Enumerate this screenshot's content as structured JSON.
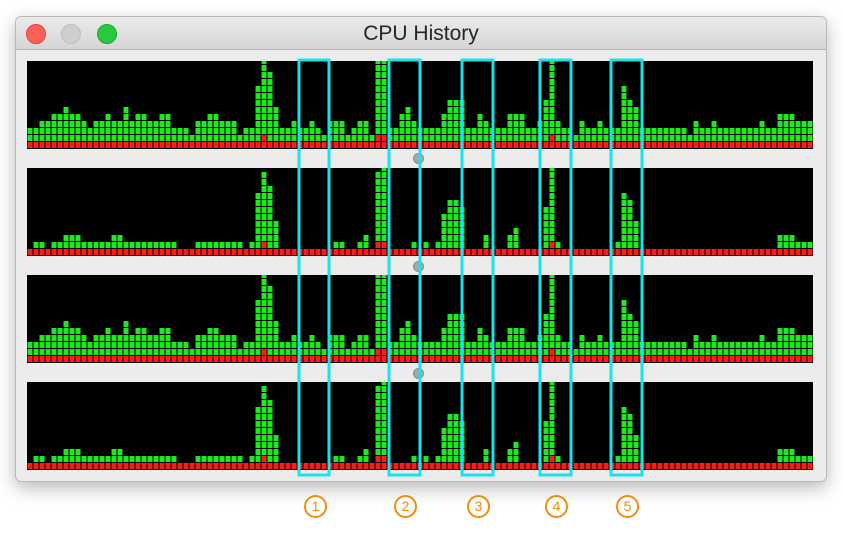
{
  "window": {
    "title": "CPU History",
    "traffic_lights": {
      "close": "#fe5f57",
      "minimize": "#cfcfcf",
      "zoom": "#28c840"
    }
  },
  "colors": {
    "user": "#1ee81e",
    "system": "#ff1a1a",
    "background": "#000000",
    "highlight": "#19e3ea",
    "marker": "#f28d0b"
  },
  "cores": [
    {
      "name": "core-1",
      "user": [
        2,
        2,
        3,
        3,
        4,
        4,
        5,
        4,
        4,
        3,
        2,
        3,
        3,
        4,
        3,
        3,
        5,
        3,
        4,
        4,
        3,
        3,
        4,
        4,
        2,
        2,
        2,
        1,
        3,
        3,
        4,
        4,
        3,
        3,
        3,
        1,
        2,
        2,
        8,
        11,
        10,
        5,
        2,
        2,
        3,
        2,
        2,
        3,
        2,
        1,
        3,
        3,
        3,
        1,
        2,
        3,
        3,
        1,
        11,
        15,
        2,
        2,
        4,
        5,
        3,
        2,
        2,
        2,
        2,
        4,
        6,
        6,
        6,
        2,
        2,
        4,
        3,
        2,
        2,
        2,
        4,
        4,
        4,
        2,
        2,
        3,
        6,
        13,
        3,
        2,
        2,
        1,
        3,
        2,
        2,
        3,
        2,
        2,
        2,
        8,
        6,
        5,
        2,
        2,
        2,
        2,
        2,
        2,
        2,
        2,
        1,
        3,
        2,
        2,
        3,
        2,
        2,
        2,
        2,
        2,
        2,
        2,
        3,
        2,
        2,
        4,
        4,
        4,
        3,
        3,
        3
      ],
      "system": [
        1,
        1,
        1,
        1,
        1,
        1,
        1,
        1,
        1,
        1,
        1,
        1,
        1,
        1,
        1,
        1,
        1,
        1,
        1,
        1,
        1,
        1,
        1,
        1,
        1,
        1,
        1,
        1,
        1,
        1,
        1,
        1,
        1,
        1,
        1,
        1,
        1,
        1,
        1,
        2,
        1,
        1,
        1,
        1,
        1,
        1,
        1,
        1,
        1,
        1,
        1,
        1,
        1,
        1,
        1,
        1,
        1,
        1,
        2,
        2,
        1,
        1,
        1,
        1,
        1,
        1,
        1,
        1,
        1,
        1,
        1,
        1,
        1,
        1,
        1,
        1,
        1,
        1,
        1,
        1,
        1,
        1,
        1,
        1,
        1,
        1,
        1,
        2,
        1,
        1,
        1,
        1,
        1,
        1,
        1,
        1,
        1,
        1,
        1,
        1,
        1,
        1,
        1,
        1,
        1,
        1,
        1,
        1,
        1,
        1,
        1,
        1,
        1,
        1,
        1,
        1,
        1,
        1,
        1,
        1,
        1,
        1,
        1,
        1,
        1,
        1,
        1,
        1,
        1,
        1,
        1
      ]
    },
    {
      "name": "core-2",
      "user": [
        0,
        1,
        1,
        0,
        1,
        1,
        2,
        2,
        2,
        1,
        1,
        1,
        1,
        1,
        2,
        2,
        1,
        1,
        1,
        1,
        1,
        1,
        1,
        1,
        1,
        0,
        0,
        0,
        1,
        1,
        1,
        1,
        1,
        1,
        1,
        1,
        0,
        1,
        8,
        10,
        9,
        4,
        0,
        0,
        0,
        0,
        0,
        0,
        0,
        0,
        0,
        1,
        1,
        0,
        0,
        1,
        2,
        0,
        10,
        14,
        0,
        0,
        0,
        0,
        1,
        0,
        1,
        0,
        1,
        5,
        7,
        7,
        6,
        0,
        0,
        0,
        2,
        0,
        0,
        0,
        2,
        3,
        0,
        0,
        0,
        0,
        6,
        13,
        1,
        0,
        0,
        0,
        0,
        0,
        0,
        0,
        0,
        0,
        1,
        8,
        7,
        4,
        0,
        0,
        0,
        0,
        0,
        0,
        0,
        0,
        0,
        0,
        0,
        0,
        0,
        0,
        0,
        0,
        0,
        0,
        0,
        0,
        0,
        0,
        0,
        2,
        2,
        2,
        1,
        1,
        1
      ],
      "system": [
        1,
        1,
        1,
        1,
        1,
        1,
        1,
        1,
        1,
        1,
        1,
        1,
        1,
        1,
        1,
        1,
        1,
        1,
        1,
        1,
        1,
        1,
        1,
        1,
        1,
        1,
        1,
        1,
        1,
        1,
        1,
        1,
        1,
        1,
        1,
        1,
        1,
        1,
        1,
        2,
        1,
        1,
        1,
        1,
        1,
        1,
        1,
        1,
        1,
        1,
        1,
        1,
        1,
        1,
        1,
        1,
        1,
        1,
        2,
        2,
        1,
        1,
        1,
        1,
        1,
        1,
        1,
        1,
        1,
        1,
        1,
        1,
        1,
        1,
        1,
        1,
        1,
        1,
        1,
        1,
        1,
        1,
        1,
        1,
        1,
        1,
        1,
        2,
        1,
        1,
        1,
        1,
        1,
        1,
        1,
        1,
        1,
        1,
        1,
        1,
        1,
        1,
        1,
        1,
        1,
        1,
        1,
        1,
        1,
        1,
        1,
        1,
        1,
        1,
        1,
        1,
        1,
        1,
        1,
        1,
        1,
        1,
        1,
        1,
        1,
        1,
        1,
        1,
        1,
        1,
        1
      ]
    },
    {
      "name": "core-3",
      "user": [
        2,
        2,
        3,
        3,
        4,
        4,
        5,
        4,
        4,
        3,
        2,
        3,
        3,
        4,
        3,
        3,
        5,
        3,
        4,
        4,
        3,
        3,
        4,
        4,
        2,
        2,
        2,
        1,
        3,
        3,
        4,
        4,
        3,
        3,
        3,
        1,
        2,
        2,
        8,
        11,
        10,
        5,
        2,
        2,
        3,
        2,
        2,
        3,
        2,
        1,
        3,
        3,
        3,
        1,
        2,
        3,
        3,
        1,
        11,
        15,
        2,
        2,
        4,
        5,
        3,
        2,
        2,
        2,
        2,
        4,
        6,
        6,
        6,
        2,
        2,
        4,
        3,
        2,
        2,
        2,
        4,
        4,
        4,
        2,
        2,
        3,
        6,
        13,
        3,
        2,
        2,
        1,
        3,
        2,
        2,
        3,
        2,
        2,
        2,
        8,
        6,
        5,
        2,
        2,
        2,
        2,
        2,
        2,
        2,
        2,
        1,
        3,
        2,
        2,
        3,
        2,
        2,
        2,
        2,
        2,
        2,
        2,
        3,
        2,
        2,
        4,
        4,
        4,
        3,
        3,
        3
      ],
      "system": [
        1,
        1,
        1,
        1,
        1,
        1,
        1,
        1,
        1,
        1,
        1,
        1,
        1,
        1,
        1,
        1,
        1,
        1,
        1,
        1,
        1,
        1,
        1,
        1,
        1,
        1,
        1,
        1,
        1,
        1,
        1,
        1,
        1,
        1,
        1,
        1,
        1,
        1,
        1,
        2,
        1,
        1,
        1,
        1,
        1,
        1,
        1,
        1,
        1,
        1,
        1,
        1,
        1,
        1,
        1,
        1,
        1,
        1,
        2,
        2,
        1,
        1,
        1,
        1,
        1,
        1,
        1,
        1,
        1,
        1,
        1,
        1,
        1,
        1,
        1,
        1,
        1,
        1,
        1,
        1,
        1,
        1,
        1,
        1,
        1,
        1,
        1,
        2,
        1,
        1,
        1,
        1,
        1,
        1,
        1,
        1,
        1,
        1,
        1,
        1,
        1,
        1,
        1,
        1,
        1,
        1,
        1,
        1,
        1,
        1,
        1,
        1,
        1,
        1,
        1,
        1,
        1,
        1,
        1,
        1,
        1,
        1,
        1,
        1,
        1,
        1,
        1,
        1,
        1,
        1,
        1
      ]
    },
    {
      "name": "core-4",
      "user": [
        0,
        1,
        1,
        0,
        1,
        1,
        2,
        2,
        2,
        1,
        1,
        1,
        1,
        1,
        2,
        2,
        1,
        1,
        1,
        1,
        1,
        1,
        1,
        1,
        1,
        0,
        0,
        0,
        1,
        1,
        1,
        1,
        1,
        1,
        1,
        1,
        0,
        1,
        8,
        10,
        9,
        4,
        0,
        0,
        0,
        0,
        0,
        0,
        0,
        0,
        0,
        1,
        1,
        0,
        0,
        1,
        2,
        0,
        10,
        14,
        0,
        0,
        0,
        0,
        1,
        0,
        1,
        0,
        1,
        5,
        7,
        7,
        6,
        0,
        0,
        0,
        2,
        0,
        0,
        0,
        2,
        3,
        0,
        0,
        0,
        0,
        6,
        13,
        1,
        0,
        0,
        0,
        0,
        0,
        0,
        0,
        0,
        0,
        1,
        8,
        7,
        4,
        0,
        0,
        0,
        0,
        0,
        0,
        0,
        0,
        0,
        0,
        0,
        0,
        0,
        0,
        0,
        0,
        0,
        0,
        0,
        0,
        0,
        0,
        0,
        2,
        2,
        2,
        1,
        1,
        1
      ],
      "system": [
        1,
        1,
        1,
        1,
        1,
        1,
        1,
        1,
        1,
        1,
        1,
        1,
        1,
        1,
        1,
        1,
        1,
        1,
        1,
        1,
        1,
        1,
        1,
        1,
        1,
        1,
        1,
        1,
        1,
        1,
        1,
        1,
        1,
        1,
        1,
        1,
        1,
        1,
        1,
        2,
        1,
        1,
        1,
        1,
        1,
        1,
        1,
        1,
        1,
        1,
        1,
        1,
        1,
        1,
        1,
        1,
        1,
        1,
        2,
        2,
        1,
        1,
        1,
        1,
        1,
        1,
        1,
        1,
        1,
        1,
        1,
        1,
        1,
        1,
        1,
        1,
        1,
        1,
        1,
        1,
        1,
        1,
        1,
        1,
        1,
        1,
        1,
        2,
        1,
        1,
        1,
        1,
        1,
        1,
        1,
        1,
        1,
        1,
        1,
        1,
        1,
        1,
        1,
        1,
        1,
        1,
        1,
        1,
        1,
        1,
        1,
        1,
        1,
        1,
        1,
        1,
        1,
        1,
        1,
        1,
        1,
        1,
        1,
        1,
        1,
        1,
        1,
        1,
        1,
        1,
        1
      ]
    }
  ],
  "highlights": [
    {
      "label": "1"
    },
    {
      "label": "2"
    },
    {
      "label": "3"
    },
    {
      "label": "4"
    },
    {
      "label": "5"
    }
  ]
}
